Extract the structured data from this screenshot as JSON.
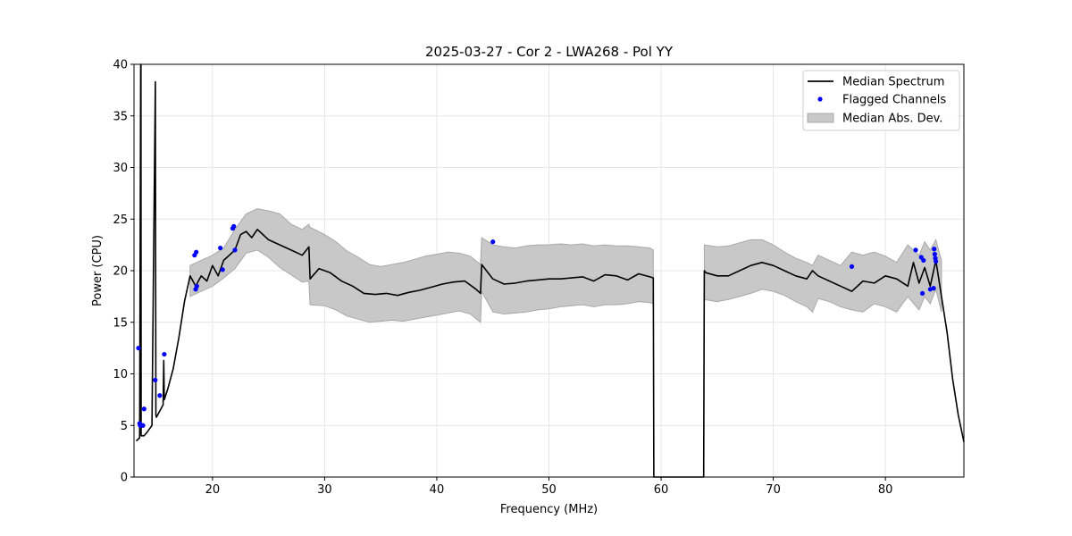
{
  "chart_data": {
    "type": "line",
    "title": "2025-03-27 - Cor 2 - LWA268 - Pol YY",
    "xlabel": "Frequency (MHz)",
    "ylabel": "Power (CPU)",
    "xlim": [
      13,
      87
    ],
    "ylim": [
      0,
      40
    ],
    "xticks": [
      20,
      30,
      40,
      50,
      60,
      70,
      80
    ],
    "yticks": [
      0,
      5,
      10,
      15,
      20,
      25,
      30,
      35,
      40
    ],
    "grid": true,
    "legend_position": "top-right",
    "legend": [
      {
        "label": "Median Spectrum",
        "kind": "line",
        "color": "#000000"
      },
      {
        "label": "Flagged Channels",
        "kind": "marker",
        "color": "#0000ff"
      },
      {
        "label": "Median Abs. Dev.",
        "kind": "patch",
        "color": "#c8c8c8"
      }
    ],
    "series": [
      {
        "name": "Median Spectrum",
        "color": "#000000",
        "x": [
          13.2,
          13.5,
          13.6,
          13.62,
          13.64,
          13.9,
          14.2,
          14.6,
          14.9,
          14.95,
          15.0,
          15.2,
          15.6,
          15.65,
          15.7,
          16.0,
          16.5,
          17.0,
          17.5,
          18.0,
          18.5,
          19.0,
          19.5,
          20.0,
          20.5,
          21.0,
          21.5,
          22.0,
          22.5,
          23.0,
          23.5,
          24.0,
          24.5,
          25.0,
          26.0,
          27.0,
          28.0,
          28.6,
          28.7,
          29.5,
          30.5,
          31.5,
          32.5,
          33.5,
          34.5,
          35.5,
          36.5,
          37.5,
          38.5,
          39.5,
          40.5,
          41.5,
          42.5,
          43.5,
          43.9,
          44.0,
          45.0,
          46.0,
          47.0,
          48.0,
          49.0,
          50.0,
          51.0,
          52.0,
          53.0,
          54.0,
          55.0,
          56.0,
          57.0,
          58.0,
          59.0,
          59.3,
          59.35,
          63.8,
          63.85,
          64.0,
          65.0,
          66.0,
          67.0,
          68.0,
          69.0,
          70.0,
          71.0,
          72.0,
          73.0,
          73.5,
          74.0,
          75.0,
          76.0,
          77.0,
          78.0,
          79.0,
          80.0,
          81.0,
          82.0,
          82.5,
          83.0,
          83.5,
          84.0,
          84.5,
          85.0,
          85.5,
          86.0,
          86.5,
          87.0
        ],
        "y": [
          3.5,
          3.8,
          40,
          40,
          4.0,
          4.0,
          4.4,
          5.0,
          38.3,
          6.0,
          5.8,
          6.2,
          7.0,
          11.3,
          7.5,
          8.5,
          10.5,
          13.5,
          17.0,
          19.5,
          18.5,
          19.5,
          19.0,
          20.5,
          19.5,
          21.0,
          21.5,
          22.0,
          23.5,
          23.8,
          23.2,
          24.0,
          23.5,
          23.0,
          22.5,
          22.0,
          21.5,
          22.3,
          19.2,
          20.2,
          19.8,
          19.0,
          18.5,
          17.8,
          17.7,
          17.8,
          17.6,
          17.9,
          18.1,
          18.4,
          18.7,
          18.9,
          19.0,
          18.2,
          17.8,
          20.6,
          19.2,
          18.7,
          18.8,
          19.0,
          19.1,
          19.2,
          19.2,
          19.3,
          19.4,
          19.0,
          19.6,
          19.5,
          19.1,
          19.7,
          19.4,
          19.3,
          0,
          0,
          20.0,
          19.8,
          19.5,
          19.5,
          20.0,
          20.5,
          20.8,
          20.5,
          20.0,
          19.5,
          19.2,
          20.0,
          19.5,
          19.0,
          18.5,
          18.0,
          19.0,
          18.8,
          19.5,
          19.2,
          18.5,
          20.8,
          18.8,
          20.3,
          18.5,
          21.0,
          17.5,
          14.0,
          9.5,
          6.0,
          3.4
        ]
      }
    ],
    "band": {
      "name": "Median Abs. Dev.",
      "color": "#c8c8c8",
      "edge": "#a8a8a8",
      "x": [
        18.0,
        19.0,
        20.0,
        21.0,
        22.0,
        23.0,
        24.0,
        25.0,
        26.0,
        27.0,
        28.0,
        28.6,
        28.7,
        30.0,
        31.0,
        32.0,
        33.0,
        34.0,
        35.0,
        36.0,
        37.0,
        38.0,
        39.0,
        40.0,
        41.0,
        42.0,
        43.0,
        43.9,
        44.0,
        45.0,
        46.0,
        47.0,
        48.0,
        49.0,
        50.0,
        51.0,
        52.0,
        53.0,
        54.0,
        55.0,
        56.0,
        57.0,
        58.0,
        59.0,
        59.3
      ],
      "upper": [
        20.5,
        21.0,
        21.5,
        22.2,
        24.0,
        25.5,
        26.0,
        25.8,
        25.5,
        24.5,
        24.0,
        24.5,
        24.2,
        23.5,
        22.8,
        21.9,
        21.3,
        20.6,
        20.4,
        20.6,
        20.8,
        21.1,
        21.4,
        21.6,
        21.8,
        21.7,
        21.4,
        20.6,
        23.2,
        22.5,
        22.3,
        22.2,
        22.4,
        22.5,
        22.5,
        22.6,
        22.5,
        22.6,
        22.4,
        22.5,
        22.4,
        22.4,
        22.3,
        22.2,
        22.0
      ],
      "lower": [
        17.5,
        18.0,
        18.5,
        19.3,
        20.2,
        21.7,
        22.0,
        21.3,
        20.3,
        19.6,
        18.9,
        19.0,
        16.7,
        16.6,
        16.2,
        15.6,
        15.3,
        15.0,
        15.1,
        15.2,
        15.1,
        15.3,
        15.5,
        15.7,
        15.9,
        16.1,
        15.8,
        15.0,
        18.0,
        16.0,
        15.8,
        15.9,
        16.0,
        16.2,
        16.3,
        16.5,
        16.6,
        16.7,
        16.5,
        16.7,
        16.7,
        16.8,
        17.0,
        16.9,
        16.8
      ]
    },
    "band2": {
      "name": "Median Abs. Dev.",
      "x": [
        63.85,
        65.0,
        66.0,
        67.0,
        68.0,
        69.0,
        70.0,
        71.0,
        72.0,
        73.0,
        73.5,
        74.0,
        75.0,
        76.0,
        77.0,
        78.0,
        79.0,
        80.0,
        81.0,
        82.0,
        83.0,
        83.5,
        84.0,
        84.5,
        85.0
      ],
      "upper": [
        22.5,
        22.3,
        22.4,
        22.7,
        23.0,
        23.0,
        22.5,
        21.8,
        21.2,
        20.8,
        20.5,
        21.5,
        21.0,
        20.5,
        21.8,
        21.5,
        21.8,
        21.4,
        20.8,
        22.5,
        21.5,
        22.8,
        22.0,
        23.0,
        21.0
      ],
      "lower": [
        17.2,
        17.0,
        17.2,
        17.5,
        17.8,
        18.2,
        18.0,
        17.6,
        17.0,
        16.5,
        16.0,
        17.3,
        17.0,
        16.5,
        16.2,
        16.0,
        16.8,
        16.5,
        16.0,
        17.5,
        16.2,
        17.5,
        16.8,
        18.2,
        16.0
      ]
    },
    "flagged": {
      "name": "Flagged Channels",
      "color": "#0000ff",
      "x": [
        13.4,
        13.5,
        13.55,
        13.7,
        13.8,
        13.9,
        14.9,
        15.3,
        15.7,
        18.4,
        18.5,
        18.55,
        18.6,
        20.7,
        20.9,
        21.8,
        21.9,
        22.0,
        45.0,
        77.0,
        82.7,
        83.2,
        83.3,
        83.4,
        84.0,
        84.3,
        84.35,
        84.4,
        84.45,
        84.5
      ],
      "y": [
        12.5,
        5.2,
        5.0,
        5.0,
        5.0,
        6.6,
        9.4,
        7.9,
        11.9,
        21.5,
        18.2,
        21.8,
        18.5,
        22.2,
        20.1,
        24.1,
        24.3,
        22.0,
        22.8,
        20.4,
        22.0,
        21.3,
        17.8,
        21.0,
        18.2,
        18.3,
        22.1,
        21.6,
        21.2,
        20.9
      ]
    }
  }
}
